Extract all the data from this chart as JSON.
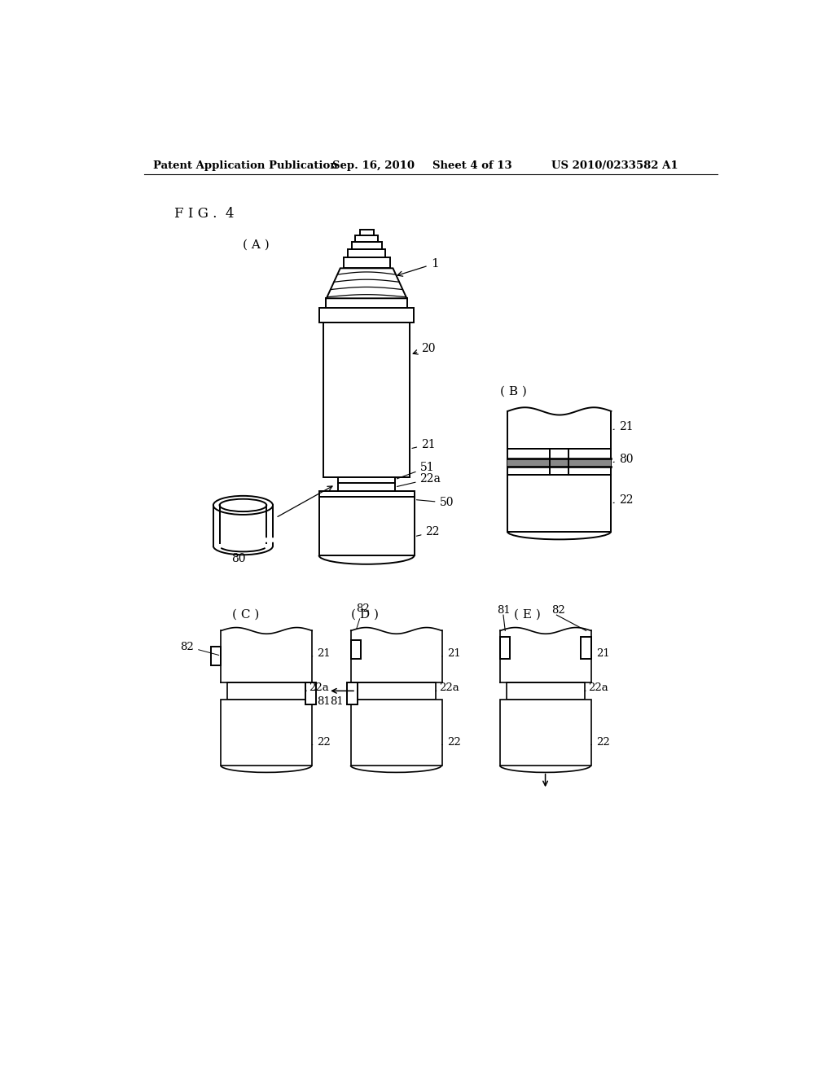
{
  "bg_color": "#ffffff",
  "header_text": "Patent Application Publication",
  "header_date": "Sep. 16, 2010",
  "header_sheet": "Sheet 4 of 13",
  "header_patent": "US 2010/0233582 A1",
  "fig_label": "F I G .  4",
  "sub_A": "( A )",
  "sub_B": "( B )",
  "sub_C": "( C )",
  "sub_D": "( D )",
  "sub_E": "( E )"
}
